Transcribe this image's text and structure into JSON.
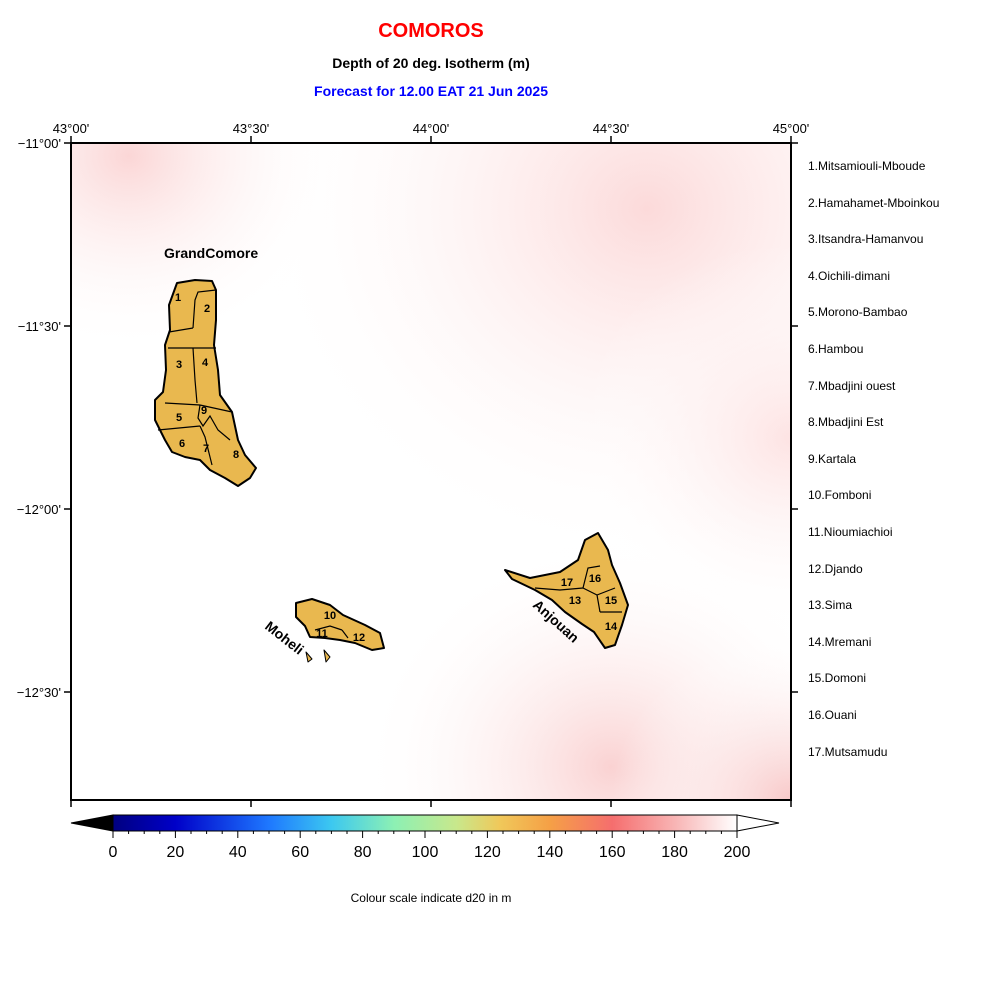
{
  "header": {
    "title": "COMOROS",
    "subtitle": "Depth of 20 deg. Isotherm (m)",
    "forecast": "Forecast for  12.00 EAT 21 Jun 2025"
  },
  "axes": {
    "lon_ticks": [
      "43°00'",
      "43°30'",
      "44°00'",
      "44°30'",
      "45°00'"
    ],
    "lat_ticks": [
      "−11°00'",
      "−11°30'",
      "−12°00'",
      "−12°30'"
    ]
  },
  "islands": {
    "grand_comore": "GrandComore",
    "moheli": "Moheli",
    "anjouan": "Anjouan"
  },
  "region_numbers": [
    "1",
    "2",
    "3",
    "4",
    "5",
    "6",
    "7",
    "8",
    "9",
    "10",
    "11",
    "12",
    "13",
    "14",
    "15",
    "16",
    "17"
  ],
  "legend": {
    "items": [
      "1.Mitsamiouli-Mboude",
      "2.Hamahamet-Mboinkou",
      "3.Itsandra-Hamanvou",
      "4.Oichili-dimani",
      "5.Morono-Bambao",
      "6.Hambou",
      "7.Mbadjini ouest",
      "8.Mbadjini Est",
      "9.Kartala",
      "10.Fomboni",
      "11.Nioumiachioi",
      "12.Djando",
      "13.Sima",
      "14.Mremani",
      "15.Domoni",
      "16.Ouani",
      "17.Mutsamudu"
    ]
  },
  "colorbar": {
    "ticks": [
      "0",
      "20",
      "40",
      "60",
      "80",
      "100",
      "120",
      "140",
      "160",
      "180",
      "200"
    ],
    "label": "Colour scale indicate d20 in m",
    "range": [
      0,
      200
    ]
  },
  "colors": {
    "land": "#e9b84f",
    "title": "#ff0000",
    "forecast": "#0000ff"
  }
}
